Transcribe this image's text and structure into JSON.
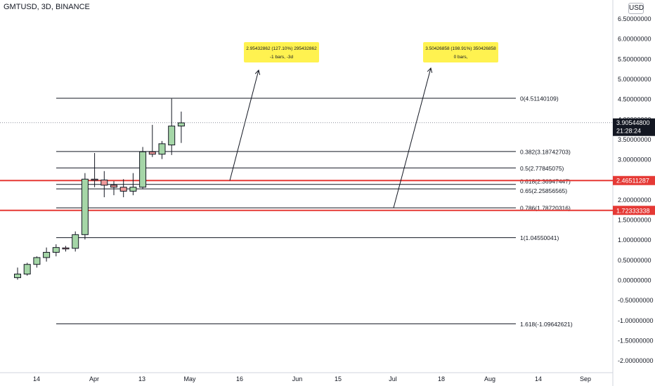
{
  "symbol": "GMTUSD, 3D, BINANCE",
  "currency": "USD",
  "colors": {
    "up": "#a5d6a7",
    "down": "#ef9a9a",
    "red_line": "#e53935",
    "fib_line": "#131722",
    "note_bg": "#fff250",
    "text": "#131722"
  },
  "chart_data": {
    "type": "candlestick",
    "y_ticks": [
      "6.50000000",
      "6.00000000",
      "5.50000000",
      "5.00000000",
      "4.50000000",
      "4.00000000",
      "3.50000000",
      "3.00000000",
      "2.50000000",
      "2.00000000",
      "1.50000000",
      "1.00000000",
      "0.50000000",
      "0.00000000",
      "-0.50000000",
      "-1.00000000",
      "-1.50000000",
      "-2.00000000"
    ],
    "x_ticks": [
      "14",
      "Apr",
      "13",
      "May",
      "16",
      "Jun",
      "15",
      "Jul",
      "18",
      "Aug",
      "14",
      "Sep"
    ],
    "candles": [
      {
        "o": 0.05,
        "h": 0.3,
        "l": 0.0,
        "c": 0.14
      },
      {
        "o": 0.14,
        "h": 0.42,
        "l": 0.1,
        "c": 0.38
      },
      {
        "o": 0.38,
        "h": 0.58,
        "l": 0.3,
        "c": 0.55
      },
      {
        "o": 0.55,
        "h": 0.8,
        "l": 0.45,
        "c": 0.68
      },
      {
        "o": 0.68,
        "h": 0.88,
        "l": 0.58,
        "c": 0.8
      },
      {
        "o": 0.79,
        "h": 0.84,
        "l": 0.7,
        "c": 0.77
      },
      {
        "o": 0.78,
        "h": 1.2,
        "l": 0.7,
        "c": 1.12
      },
      {
        "o": 1.12,
        "h": 2.65,
        "l": 1.0,
        "c": 2.5
      },
      {
        "o": 2.5,
        "h": 3.15,
        "l": 2.3,
        "c": 2.48
      },
      {
        "o": 2.48,
        "h": 2.7,
        "l": 2.05,
        "c": 2.35
      },
      {
        "o": 2.35,
        "h": 2.45,
        "l": 2.1,
        "c": 2.3
      },
      {
        "o": 2.3,
        "h": 2.5,
        "l": 2.05,
        "c": 2.2
      },
      {
        "o": 2.2,
        "h": 2.65,
        "l": 2.1,
        "c": 2.3
      },
      {
        "o": 2.3,
        "h": 3.3,
        "l": 2.25,
        "c": 3.18
      },
      {
        "o": 3.18,
        "h": 3.85,
        "l": 3.05,
        "c": 3.12
      },
      {
        "o": 3.12,
        "h": 3.45,
        "l": 3.0,
        "c": 3.38
      },
      {
        "o": 3.35,
        "h": 4.5,
        "l": 3.1,
        "c": 3.82
      },
      {
        "o": 3.82,
        "h": 4.18,
        "l": 3.4,
        "c": 3.9
      }
    ],
    "fib_levels": [
      {
        "label": "0(4.51140109)",
        "value": 4.51140109
      },
      {
        "label": "0.382(3.18742703)",
        "value": 3.18742703
      },
      {
        "label": "0.5(2.77845075)",
        "value": 2.77845075
      },
      {
        "label": "0.618(2.36947447)",
        "value": 2.36947447
      },
      {
        "label": "0.65(2.25856565)",
        "value": 2.25856565
      },
      {
        "label": "0.786(1.78720316)",
        "value": 1.78720316
      },
      {
        "label": "1(1.04550041)",
        "value": 1.04550041
      },
      {
        "label": "1.618(-1.09642621)",
        "value": -1.09642621
      }
    ],
    "red_lines": [
      {
        "label": "2.46511287",
        "value": 2.46511287
      },
      {
        "label": "1.72333338",
        "value": 1.72333338
      }
    ],
    "current_price": {
      "label": "3.90544800",
      "value": 3.905448,
      "countdown": "21:28:24"
    },
    "notes": [
      {
        "line1": "2.95432862 (127.10%) 295432862",
        "line2": "-1 bars, -3d"
      },
      {
        "line1": "3.50426858 (198.91%) 350426858",
        "line2": "0 bars,"
      }
    ]
  }
}
